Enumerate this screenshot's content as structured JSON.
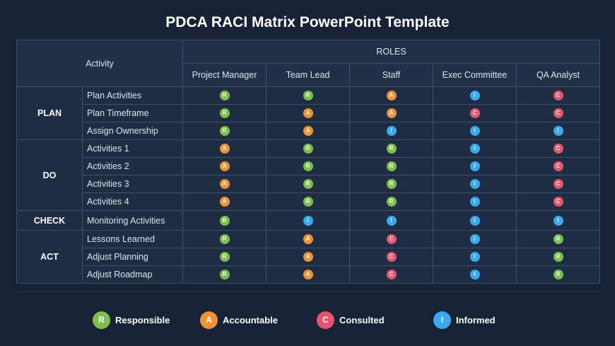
{
  "title": "PDCA RACI Matrix PowerPoint Template",
  "table": {
    "activity_header": "Activity",
    "roles_header": "ROLES",
    "roles": [
      "Project Manager",
      "Team Lead",
      "Staff",
      "Exec Committee",
      "QA Analyst"
    ],
    "phases": [
      {
        "name": "PLAN",
        "rows": [
          {
            "activity": "Plan Activities",
            "values": [
              "R",
              "R",
              "A",
              "I",
              "C"
            ]
          },
          {
            "activity": "Plan Timeframe",
            "values": [
              "R",
              "A",
              "A",
              "C",
              "C"
            ]
          },
          {
            "activity": "Assign Ownership",
            "values": [
              "R",
              "A",
              "I",
              "I",
              "I"
            ]
          }
        ]
      },
      {
        "name": "DO",
        "rows": [
          {
            "activity": "Activities 1",
            "values": [
              "A",
              "R",
              "R",
              "I",
              "C"
            ]
          },
          {
            "activity": "Activities 2",
            "values": [
              "A",
              "R",
              "R",
              "I",
              "C"
            ]
          },
          {
            "activity": "Activities 3",
            "values": [
              "A",
              "R",
              "R",
              "I",
              "C"
            ]
          },
          {
            "activity": "Activities 4",
            "values": [
              "A",
              "R",
              "R",
              "I",
              "C"
            ]
          }
        ]
      },
      {
        "name": "CHECK",
        "rows": [
          {
            "activity": "Monitoring Activities",
            "values": [
              "R",
              "I",
              "I",
              "I",
              "I"
            ]
          }
        ]
      },
      {
        "name": "ACT",
        "rows": [
          {
            "activity": "Lessons Learned",
            "values": [
              "R",
              "A",
              "C",
              "I",
              "R"
            ]
          },
          {
            "activity": "Adjust Planning",
            "values": [
              "R",
              "A",
              "C",
              "I",
              "R"
            ]
          },
          {
            "activity": "Adjust Roadmap",
            "values": [
              "R",
              "A",
              "C",
              "I",
              "R"
            ]
          }
        ]
      }
    ]
  },
  "legend": [
    {
      "letter": "R",
      "label": "Responsible",
      "color": "#7cc04b"
    },
    {
      "letter": "A",
      "label": "Accountable",
      "color": "#ec9335"
    },
    {
      "letter": "C",
      "label": "Consulted",
      "color": "#e4566d"
    },
    {
      "letter": "I",
      "label": "Informed",
      "color": "#39a9f0"
    }
  ]
}
